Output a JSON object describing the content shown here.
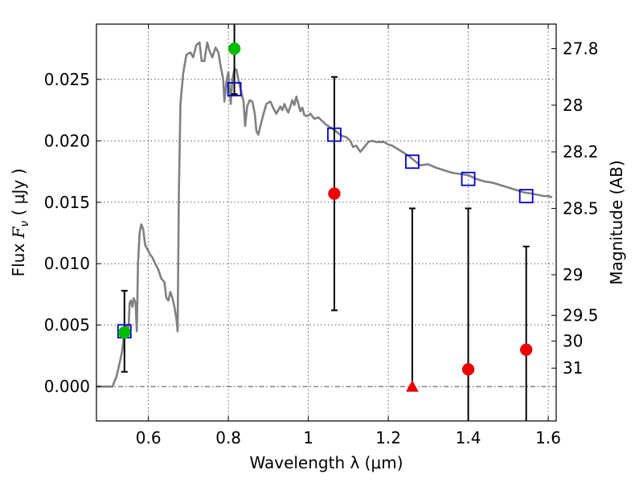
{
  "chart_data": {
    "type": "scatter",
    "xlabel": "Wavelength  λ (μm)",
    "ylabel": {
      "prefix": "Flux ",
      "symbol": "F",
      "sub": "ν",
      "suffix": "  ( μJy )"
    },
    "right_label": "Magnitude (AB)",
    "xlim": [
      0.47,
      1.62
    ],
    "ylim": [
      -0.0028,
      0.0295
    ],
    "x_ticks": [
      {
        "v": 0.6,
        "label": "0.6"
      },
      {
        "v": 0.8,
        "label": "0.8"
      },
      {
        "v": 1.0,
        "label": "1"
      },
      {
        "v": 1.2,
        "label": "1.2"
      },
      {
        "v": 1.4,
        "label": "1.4"
      },
      {
        "v": 1.6,
        "label": "1.6"
      }
    ],
    "y_ticks": [
      {
        "v": 0.0,
        "label": "0.000"
      },
      {
        "v": 0.005,
        "label": "0.005"
      },
      {
        "v": 0.01,
        "label": "0.010"
      },
      {
        "v": 0.015,
        "label": "0.015"
      },
      {
        "v": 0.02,
        "label": "0.020"
      },
      {
        "v": 0.025,
        "label": "0.025"
      }
    ],
    "mag_ticks": [
      {
        "label": "27.8",
        "flux": 0.0275
      },
      {
        "label": "28",
        "flux": 0.0229
      },
      {
        "label": "28.2",
        "flux": 0.0191
      },
      {
        "label": "28.5",
        "flux": 0.0145
      },
      {
        "label": "29",
        "flux": 0.0091
      },
      {
        "label": "29.5",
        "flux": 0.0058
      },
      {
        "label": "30",
        "flux": 0.0037
      },
      {
        "label": "31",
        "flux": 0.0015
      }
    ],
    "grid": true,
    "zero_line": true,
    "model_sed": {
      "color": "#808080",
      "points": [
        [
          0.47,
          0.0
        ],
        [
          0.51,
          0.0
        ],
        [
          0.52,
          0.0008
        ],
        [
          0.53,
          0.0022
        ],
        [
          0.535,
          0.003
        ],
        [
          0.54,
          0.0045
        ],
        [
          0.545,
          0.005
        ],
        [
          0.55,
          0.0045
        ],
        [
          0.553,
          0.0068
        ],
        [
          0.556,
          0.007
        ],
        [
          0.56,
          0.0065
        ],
        [
          0.563,
          0.0072
        ],
        [
          0.568,
          0.0068
        ],
        [
          0.571,
          0.0045
        ],
        [
          0.574,
          0.01
        ],
        [
          0.578,
          0.0125
        ],
        [
          0.582,
          0.0132
        ],
        [
          0.587,
          0.0128
        ],
        [
          0.592,
          0.0115
        ],
        [
          0.597,
          0.0112
        ],
        [
          0.603,
          0.0108
        ],
        [
          0.61,
          0.0105
        ],
        [
          0.617,
          0.01
        ],
        [
          0.625,
          0.0095
        ],
        [
          0.632,
          0.0088
        ],
        [
          0.64,
          0.0085
        ],
        [
          0.645,
          0.0072
        ],
        [
          0.65,
          0.007
        ],
        [
          0.655,
          0.0077
        ],
        [
          0.66,
          0.0072
        ],
        [
          0.665,
          0.0065
        ],
        [
          0.67,
          0.0055
        ],
        [
          0.673,
          0.0045
        ],
        [
          0.676,
          0.0155
        ],
        [
          0.68,
          0.023
        ],
        [
          0.687,
          0.0255
        ],
        [
          0.695,
          0.027
        ],
        [
          0.705,
          0.0272
        ],
        [
          0.712,
          0.0268
        ],
        [
          0.72,
          0.0278
        ],
        [
          0.728,
          0.028
        ],
        [
          0.733,
          0.0265
        ],
        [
          0.74,
          0.0265
        ],
        [
          0.747,
          0.028
        ],
        [
          0.753,
          0.0273
        ],
        [
          0.76,
          0.0268
        ],
        [
          0.768,
          0.0276
        ],
        [
          0.775,
          0.0272
        ],
        [
          0.78,
          0.0262
        ],
        [
          0.787,
          0.025
        ],
        [
          0.79,
          0.0232
        ],
        [
          0.795,
          0.0248
        ],
        [
          0.8,
          0.0256
        ],
        [
          0.803,
          0.0242
        ],
        [
          0.806,
          0.023
        ],
        [
          0.81,
          0.025
        ],
        [
          0.815,
          0.0258
        ],
        [
          0.82,
          0.0258
        ],
        [
          0.826,
          0.0248
        ],
        [
          0.832,
          0.024
        ],
        [
          0.838,
          0.0232
        ],
        [
          0.842,
          0.0212
        ],
        [
          0.847,
          0.0228
        ],
        [
          0.853,
          0.0233
        ],
        [
          0.86,
          0.0232
        ],
        [
          0.866,
          0.0222
        ],
        [
          0.87,
          0.0208
        ],
        [
          0.875,
          0.0205
        ],
        [
          0.88,
          0.0212
        ],
        [
          0.888,
          0.0222
        ],
        [
          0.895,
          0.023
        ],
        [
          0.905,
          0.0232
        ],
        [
          0.912,
          0.0227
        ],
        [
          0.92,
          0.0222
        ],
        [
          0.93,
          0.0228
        ],
        [
          0.935,
          0.0225
        ],
        [
          0.94,
          0.023
        ],
        [
          0.945,
          0.0226
        ],
        [
          0.95,
          0.0223
        ],
        [
          0.955,
          0.0228
        ],
        [
          0.96,
          0.0233
        ],
        [
          0.965,
          0.0229
        ],
        [
          0.97,
          0.0236
        ],
        [
          0.975,
          0.023
        ],
        [
          0.98,
          0.0224
        ],
        [
          0.985,
          0.0227
        ],
        [
          0.99,
          0.0221
        ],
        [
          0.997,
          0.022
        ],
        [
          1.005,
          0.0222
        ],
        [
          1.015,
          0.0218
        ],
        [
          1.025,
          0.0219
        ],
        [
          1.035,
          0.0216
        ],
        [
          1.045,
          0.0213
        ],
        [
          1.055,
          0.0211
        ],
        [
          1.065,
          0.0209
        ],
        [
          1.075,
          0.0206
        ],
        [
          1.085,
          0.0204
        ],
        [
          1.095,
          0.0203
        ],
        [
          1.105,
          0.02
        ],
        [
          1.112,
          0.0195
        ],
        [
          1.12,
          0.0196
        ],
        [
          1.13,
          0.0191
        ],
        [
          1.14,
          0.0195
        ],
        [
          1.15,
          0.0199
        ],
        [
          1.16,
          0.02
        ],
        [
          1.17,
          0.0199
        ],
        [
          1.18,
          0.0199
        ],
        [
          1.19,
          0.0199
        ],
        [
          1.2,
          0.0197
        ],
        [
          1.21,
          0.0196
        ],
        [
          1.22,
          0.0194
        ],
        [
          1.23,
          0.0192
        ],
        [
          1.24,
          0.019
        ],
        [
          1.25,
          0.0188
        ],
        [
          1.265,
          0.0184
        ],
        [
          1.28,
          0.018
        ],
        [
          1.3,
          0.0181
        ],
        [
          1.32,
          0.0178
        ],
        [
          1.34,
          0.0176
        ],
        [
          1.36,
          0.0174
        ],
        [
          1.38,
          0.0173
        ],
        [
          1.4,
          0.0172
        ],
        [
          1.42,
          0.0169
        ],
        [
          1.44,
          0.0167
        ],
        [
          1.46,
          0.0166
        ],
        [
          1.48,
          0.0164
        ],
        [
          1.5,
          0.0162
        ],
        [
          1.52,
          0.016
        ],
        [
          1.54,
          0.0158
        ],
        [
          1.56,
          0.0157
        ],
        [
          1.575,
          0.0156
        ],
        [
          1.59,
          0.0155
        ],
        [
          1.6,
          0.0155
        ],
        [
          1.61,
          0.0154
        ]
      ]
    },
    "model_points": {
      "color": "#0000cc",
      "points": [
        {
          "x": 0.54,
          "y": 0.0045
        },
        {
          "x": 0.815,
          "y": 0.0242
        },
        {
          "x": 1.065,
          "y": 0.0205
        },
        {
          "x": 1.26,
          "y": 0.0183
        },
        {
          "x": 1.4,
          "y": 0.0169
        },
        {
          "x": 1.545,
          "y": 0.0155
        }
      ]
    },
    "observations": [
      {
        "x": 0.54,
        "y": 0.0044,
        "color": "#00bb00",
        "marker": "circle",
        "err_low": 0.0012,
        "err_high": 0.0078
      },
      {
        "x": 0.815,
        "y": 0.0275,
        "color": "#00bb00",
        "marker": "circle",
        "err_low": 0.0238,
        "err_high": 0.0295
      },
      {
        "x": 1.065,
        "y": 0.0157,
        "color": "#ee0000",
        "marker": "circle",
        "err_low": 0.0062,
        "err_high": 0.0252
      },
      {
        "x": 1.26,
        "y": 0.0,
        "color": "#ee0000",
        "marker": "triangle",
        "err_low": 0.0,
        "err_high": 0.0145
      },
      {
        "x": 1.4,
        "y": 0.0014,
        "color": "#ee0000",
        "marker": "circle",
        "err_low": -0.0028,
        "err_high": 0.0145
      },
      {
        "x": 1.545,
        "y": 0.003,
        "color": "#ee0000",
        "marker": "circle",
        "err_low": -0.0028,
        "err_high": 0.0114
      }
    ]
  }
}
